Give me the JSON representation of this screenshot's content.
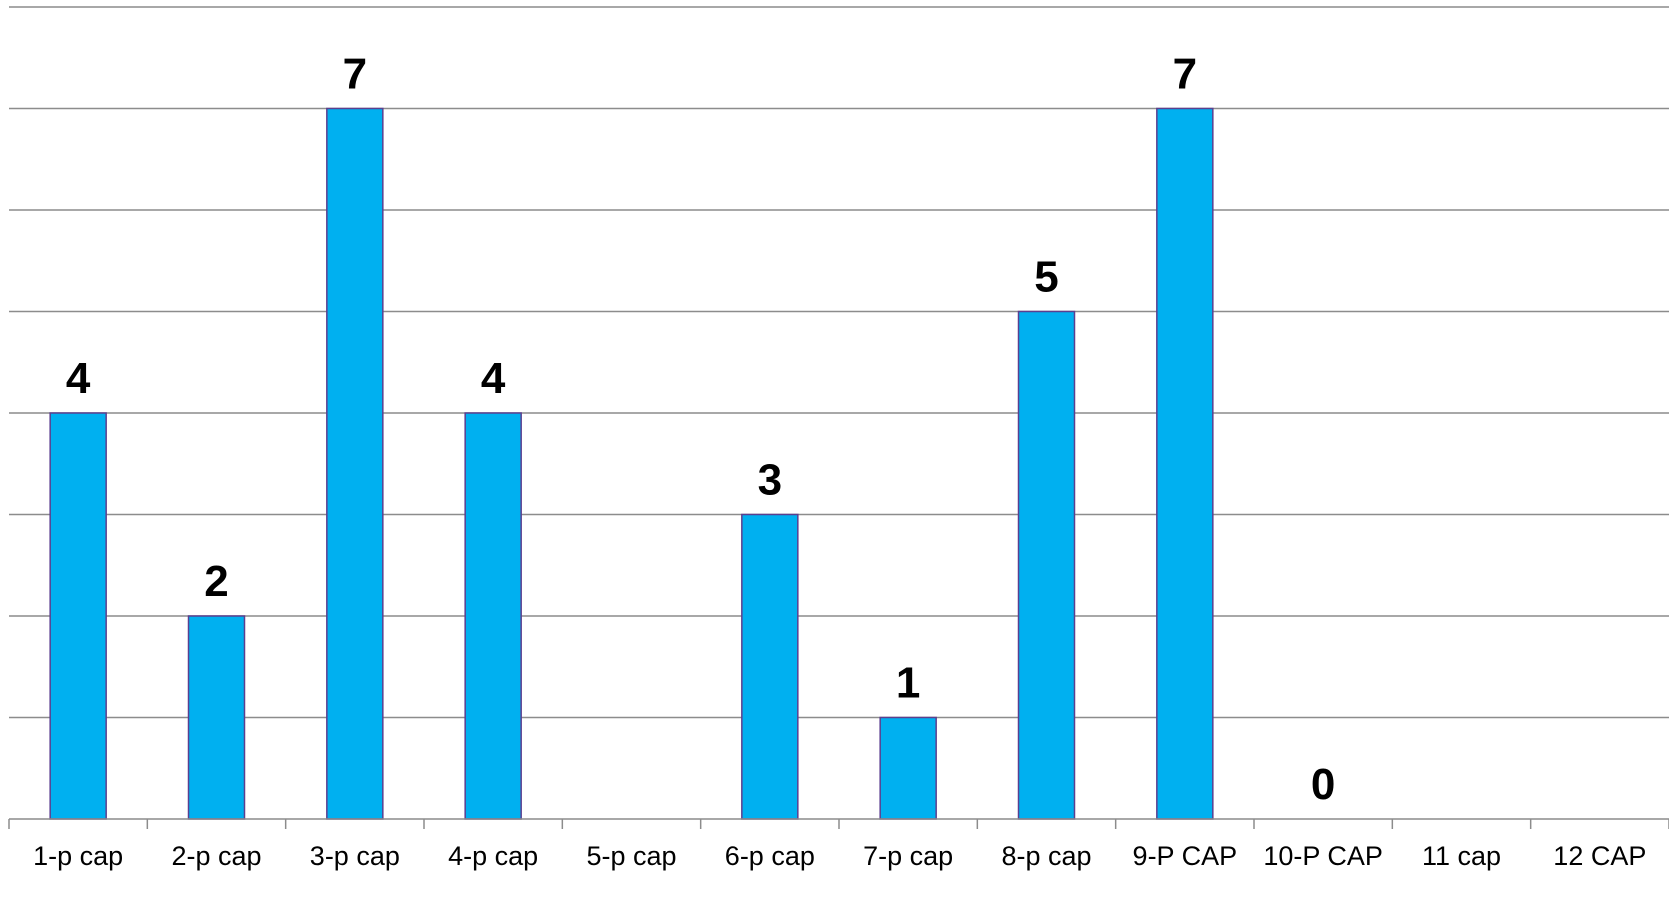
{
  "chart_data": {
    "type": "bar",
    "title": "",
    "xlabel": "",
    "ylabel": "",
    "categories": [
      "1-p cap",
      "2-p cap",
      "3-p cap",
      "4-p cap",
      "5-p cap",
      "6-p cap",
      "7-p cap",
      "8-p cap",
      "9-P CAP",
      "10-P CAP",
      "11 cap",
      "12 CAP"
    ],
    "values": [
      4,
      2,
      7,
      4,
      null,
      3,
      1,
      5,
      7,
      0,
      null,
      null
    ],
    "data_labels": [
      "4",
      "2",
      "7",
      "4",
      "",
      "3",
      "1",
      "5",
      "7",
      "0",
      "",
      ""
    ],
    "ylim": [
      0,
      8
    ],
    "gridlines": [
      1,
      2,
      3,
      4,
      5,
      6,
      7,
      8
    ],
    "grid": true,
    "legend": "none",
    "bar_color": "#00b0f0",
    "bar_edge_color": "#5b3f8f"
  }
}
